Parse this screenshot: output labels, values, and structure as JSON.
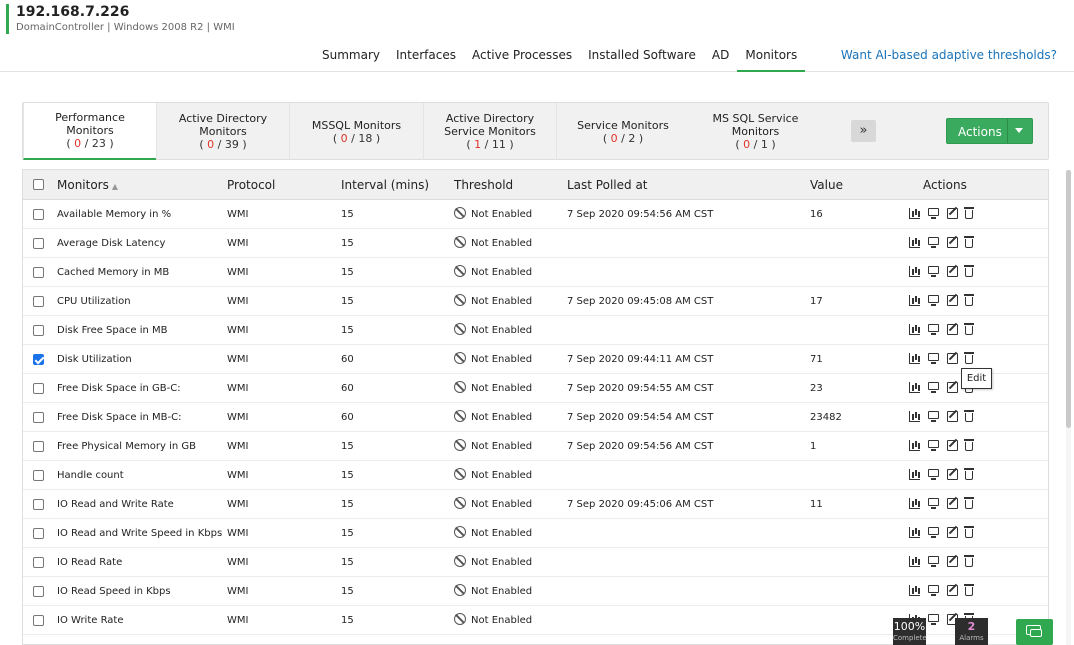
{
  "header": {
    "host": "192.168.7.226",
    "subtitle": "DomainController | Windows 2008 R2 | WMI",
    "accent_color": "#2fa84f"
  },
  "nav": {
    "tabs": [
      "Summary",
      "Interfaces",
      "Active Processes",
      "Installed Software",
      "AD",
      "Monitors"
    ],
    "active": "Monitors",
    "ai_link": "Want AI-based adaptive thresholds?"
  },
  "categories": [
    {
      "label": "Performance Monitors",
      "down": "0",
      "total": "23",
      "active": true
    },
    {
      "label": "Active Directory Monitors",
      "down": "0",
      "total": "39",
      "active": false
    },
    {
      "label": "MSSQL Monitors",
      "down": "0",
      "total": "18",
      "active": false
    },
    {
      "label": "Active Directory Service Monitors",
      "down": "1",
      "total": "11",
      "active": false
    },
    {
      "label": "Service Monitors",
      "down": "0",
      "total": "2",
      "active": false
    },
    {
      "label": "MS SQL Service Monitors",
      "down": "0",
      "total": "1",
      "active": false
    }
  ],
  "toolbar": {
    "more_icon": "double-chevron-right-icon",
    "more_glyph": "»",
    "actions_label": "Actions"
  },
  "table": {
    "headers": {
      "monitors": "Monitors",
      "protocol": "Protocol",
      "interval": "Interval (mins)",
      "threshold": "Threshold",
      "last_polled": "Last Polled at",
      "value": "Value",
      "actions": "Actions"
    },
    "rows": [
      {
        "name": "Available Memory in %",
        "protocol": "WMI",
        "interval": "15",
        "threshold": "Not Enabled",
        "polled": "7 Sep 2020 09:54:56 AM CST",
        "value": "16",
        "checked": false
      },
      {
        "name": "Average Disk Latency",
        "protocol": "WMI",
        "interval": "15",
        "threshold": "Not Enabled",
        "polled": "",
        "value": "",
        "checked": false
      },
      {
        "name": "Cached Memory in MB",
        "protocol": "WMI",
        "interval": "15",
        "threshold": "Not Enabled",
        "polled": "",
        "value": "",
        "checked": false
      },
      {
        "name": "CPU Utilization",
        "protocol": "WMI",
        "interval": "15",
        "threshold": "Not Enabled",
        "polled": "7 Sep 2020 09:45:08 AM CST",
        "value": "17",
        "checked": false
      },
      {
        "name": "Disk Free Space in MB",
        "protocol": "WMI",
        "interval": "15",
        "threshold": "Not Enabled",
        "polled": "",
        "value": "",
        "checked": false
      },
      {
        "name": "Disk Utilization",
        "protocol": "WMI",
        "interval": "60",
        "threshold": "Not Enabled",
        "polled": "7 Sep 2020 09:44:11 AM CST",
        "value": "71",
        "checked": true
      },
      {
        "name": "Free Disk Space in GB-C:",
        "protocol": "WMI",
        "interval": "60",
        "threshold": "Not Enabled",
        "polled": "7 Sep 2020 09:54:55 AM CST",
        "value": "23",
        "checked": false
      },
      {
        "name": "Free Disk Space in MB-C:",
        "protocol": "WMI",
        "interval": "60",
        "threshold": "Not Enabled",
        "polled": "7 Sep 2020 09:54:54 AM CST",
        "value": "23482",
        "checked": false
      },
      {
        "name": "Free Physical Memory in GB",
        "protocol": "WMI",
        "interval": "15",
        "threshold": "Not Enabled",
        "polled": "7 Sep 2020 09:54:56 AM CST",
        "value": "1",
        "checked": false
      },
      {
        "name": "Handle count",
        "protocol": "WMI",
        "interval": "15",
        "threshold": "Not Enabled",
        "polled": "",
        "value": "",
        "checked": false
      },
      {
        "name": "IO Read and Write Rate",
        "protocol": "WMI",
        "interval": "15",
        "threshold": "Not Enabled",
        "polled": "7 Sep 2020 09:45:06 AM CST",
        "value": "11",
        "checked": false
      },
      {
        "name": "IO Read and Write Speed in Kbps",
        "protocol": "WMI",
        "interval": "15",
        "threshold": "Not Enabled",
        "polled": "",
        "value": "",
        "checked": false
      },
      {
        "name": "IO Read Rate",
        "protocol": "WMI",
        "interval": "15",
        "threshold": "Not Enabled",
        "polled": "",
        "value": "",
        "checked": false
      },
      {
        "name": "IO Read Speed in Kbps",
        "protocol": "WMI",
        "interval": "15",
        "threshold": "Not Enabled",
        "polled": "",
        "value": "",
        "checked": false
      },
      {
        "name": "IO Write Rate",
        "protocol": "WMI",
        "interval": "15",
        "threshold": "Not Enabled",
        "polled": "",
        "value": "",
        "checked": false
      }
    ],
    "row_action_icons": [
      "bar-chart-icon",
      "monitor-icon",
      "edit-icon",
      "trash-icon"
    ]
  },
  "tooltip": {
    "text": "Edit"
  },
  "widgets": {
    "progress_value": "100%",
    "progress_label": "Complete",
    "alarms_count": "2",
    "alarms_label": "Alarms"
  }
}
